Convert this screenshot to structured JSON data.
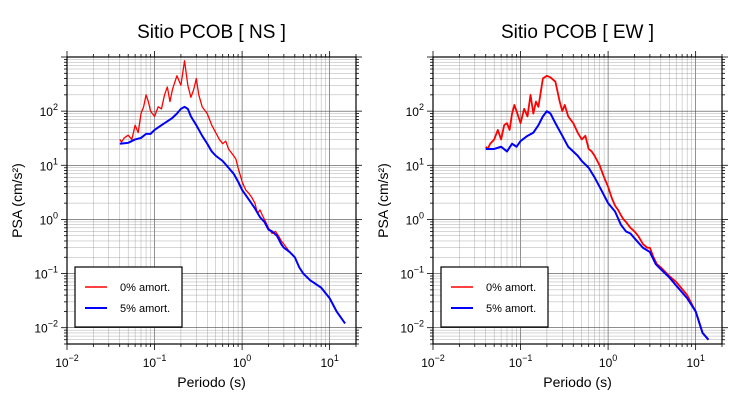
{
  "chart_data": [
    {
      "type": "line",
      "title": "Sitio PCOB [ NS ]",
      "xlabel": "Periodo (s)",
      "ylabel": "PSA (cm/s²)",
      "xscale": "log",
      "yscale": "log",
      "xlim": [
        0.01,
        20
      ],
      "ylim": [
        0.005,
        1000
      ],
      "x_ticks": [
        {
          "base": "10",
          "exp": "−2",
          "value": 0.01
        },
        {
          "base": "10",
          "exp": "−1",
          "value": 0.1
        },
        {
          "base": "10",
          "exp": "0",
          "value": 1
        },
        {
          "base": "10",
          "exp": "1",
          "value": 10
        }
      ],
      "y_ticks": [
        {
          "base": "10",
          "exp": "−2",
          "value": 0.01
        },
        {
          "base": "10",
          "exp": "−1",
          "value": 0.1
        },
        {
          "base": "10",
          "exp": "0",
          "value": 1
        },
        {
          "base": "10",
          "exp": "1",
          "value": 10
        },
        {
          "base": "10",
          "exp": "2",
          "value": 100
        }
      ],
      "grid": true,
      "legend_position": "bottom-left",
      "series": [
        {
          "name": "0% amort.",
          "color": "#ff0000",
          "points": [
            [
              0.04,
              30
            ],
            [
              0.042,
              27
            ],
            [
              0.045,
              32
            ],
            [
              0.05,
              36
            ],
            [
              0.055,
              30
            ],
            [
              0.06,
              55
            ],
            [
              0.065,
              40
            ],
            [
              0.07,
              90
            ],
            [
              0.075,
              120
            ],
            [
              0.08,
              200
            ],
            [
              0.085,
              150
            ],
            [
              0.09,
              100
            ],
            [
              0.1,
              80
            ],
            [
              0.11,
              120
            ],
            [
              0.12,
              110
            ],
            [
              0.13,
              200
            ],
            [
              0.14,
              280
            ],
            [
              0.15,
              150
            ],
            [
              0.16,
              250
            ],
            [
              0.18,
              450
            ],
            [
              0.2,
              300
            ],
            [
              0.22,
              850
            ],
            [
              0.24,
              300
            ],
            [
              0.26,
              180
            ],
            [
              0.28,
              250
            ],
            [
              0.3,
              400
            ],
            [
              0.32,
              200
            ],
            [
              0.35,
              120
            ],
            [
              0.4,
              90
            ],
            [
              0.45,
              55
            ],
            [
              0.5,
              40
            ],
            [
              0.55,
              30
            ],
            [
              0.6,
              25
            ],
            [
              0.65,
              28
            ],
            [
              0.7,
              20
            ],
            [
              0.8,
              15
            ],
            [
              0.85,
              13
            ],
            [
              0.9,
              9
            ],
            [
              1.0,
              5
            ],
            [
              1.1,
              3.5
            ],
            [
              1.2,
              3
            ],
            [
              1.3,
              2.5
            ],
            [
              1.4,
              2
            ],
            [
              1.5,
              1.3
            ],
            [
              1.6,
              1.5
            ],
            [
              1.7,
              1.2
            ],
            [
              1.8,
              1.0
            ],
            [
              2.0,
              0.7
            ],
            [
              2.2,
              0.55
            ],
            [
              2.4,
              0.6
            ],
            [
              2.6,
              0.5
            ],
            [
              2.8,
              0.4
            ],
            [
              3.0,
              0.35
            ],
            [
              3.5,
              0.25
            ],
            [
              4.0,
              0.2
            ],
            [
              4.5,
              0.13
            ],
            [
              5.0,
              0.1
            ],
            [
              6.0,
              0.075
            ],
            [
              8.0,
              0.055
            ],
            [
              10.0,
              0.035
            ],
            [
              12.0,
              0.02
            ],
            [
              15.0,
              0.012
            ]
          ]
        },
        {
          "name": "5% amort.",
          "color": "#0000ff",
          "points": [
            [
              0.04,
              25
            ],
            [
              0.05,
              26
            ],
            [
              0.06,
              30
            ],
            [
              0.07,
              32
            ],
            [
              0.08,
              38
            ],
            [
              0.09,
              38
            ],
            [
              0.1,
              45
            ],
            [
              0.12,
              55
            ],
            [
              0.14,
              65
            ],
            [
              0.16,
              75
            ],
            [
              0.18,
              90
            ],
            [
              0.2,
              110
            ],
            [
              0.22,
              120
            ],
            [
              0.24,
              110
            ],
            [
              0.26,
              80
            ],
            [
              0.3,
              55
            ],
            [
              0.35,
              35
            ],
            [
              0.4,
              25
            ],
            [
              0.45,
              18
            ],
            [
              0.5,
              15
            ],
            [
              0.6,
              12
            ],
            [
              0.7,
              9
            ],
            [
              0.8,
              7
            ],
            [
              0.9,
              5
            ],
            [
              1.0,
              3.5
            ],
            [
              1.2,
              2.3
            ],
            [
              1.4,
              1.6
            ],
            [
              1.6,
              1.1
            ],
            [
              1.8,
              0.9
            ],
            [
              2.0,
              0.65
            ],
            [
              2.2,
              0.6
            ],
            [
              2.5,
              0.5
            ],
            [
              2.8,
              0.35
            ],
            [
              3.0,
              0.3
            ],
            [
              3.5,
              0.25
            ],
            [
              4.0,
              0.2
            ],
            [
              4.5,
              0.13
            ],
            [
              5.0,
              0.1
            ],
            [
              6.0,
              0.075
            ],
            [
              8.0,
              0.055
            ],
            [
              10.0,
              0.035
            ],
            [
              12.0,
              0.02
            ],
            [
              15.0,
              0.012
            ]
          ]
        }
      ]
    },
    {
      "type": "line",
      "title": "Sitio PCOB [ EW ]",
      "xlabel": "Periodo (s)",
      "ylabel": "PSA (cm/s²)",
      "xscale": "log",
      "yscale": "log",
      "xlim": [
        0.01,
        20
      ],
      "ylim": [
        0.005,
        1000
      ],
      "x_ticks": [
        {
          "base": "10",
          "exp": "−2",
          "value": 0.01
        },
        {
          "base": "10",
          "exp": "−1",
          "value": 0.1
        },
        {
          "base": "10",
          "exp": "0",
          "value": 1
        },
        {
          "base": "10",
          "exp": "1",
          "value": 10
        }
      ],
      "y_ticks": [
        {
          "base": "10",
          "exp": "−2",
          "value": 0.01
        },
        {
          "base": "10",
          "exp": "−1",
          "value": 0.1
        },
        {
          "base": "10",
          "exp": "0",
          "value": 1
        },
        {
          "base": "10",
          "exp": "1",
          "value": 10
        },
        {
          "base": "10",
          "exp": "2",
          "value": 100
        }
      ],
      "grid": true,
      "legend_position": "bottom-left",
      "series": [
        {
          "name": "0% amort.",
          "color": "#ff0000",
          "points": [
            [
              0.04,
              22
            ],
            [
              0.042,
              20
            ],
            [
              0.045,
              25
            ],
            [
              0.05,
              30
            ],
            [
              0.055,
              45
            ],
            [
              0.06,
              30
            ],
            [
              0.065,
              55
            ],
            [
              0.07,
              60
            ],
            [
              0.075,
              45
            ],
            [
              0.08,
              90
            ],
            [
              0.085,
              130
            ],
            [
              0.09,
              100
            ],
            [
              0.1,
              60
            ],
            [
              0.11,
              110
            ],
            [
              0.12,
              80
            ],
            [
              0.13,
              200
            ],
            [
              0.14,
              90
            ],
            [
              0.15,
              150
            ],
            [
              0.16,
              120
            ],
            [
              0.18,
              400
            ],
            [
              0.2,
              450
            ],
            [
              0.22,
              420
            ],
            [
              0.25,
              350
            ],
            [
              0.28,
              150
            ],
            [
              0.3,
              100
            ],
            [
              0.32,
              130
            ],
            [
              0.35,
              80
            ],
            [
              0.4,
              60
            ],
            [
              0.45,
              40
            ],
            [
              0.5,
              30
            ],
            [
              0.55,
              35
            ],
            [
              0.6,
              20
            ],
            [
              0.65,
              18
            ],
            [
              0.7,
              15
            ],
            [
              0.8,
              10
            ],
            [
              0.9,
              6
            ],
            [
              1.0,
              4
            ],
            [
              1.1,
              2.5
            ],
            [
              1.2,
              1.8
            ],
            [
              1.3,
              1.5
            ],
            [
              1.4,
              1.2
            ],
            [
              1.5,
              1.0
            ],
            [
              1.6,
              0.9
            ],
            [
              1.8,
              0.7
            ],
            [
              2.0,
              0.6
            ],
            [
              2.2,
              0.5
            ],
            [
              2.5,
              0.35
            ],
            [
              2.8,
              0.3
            ],
            [
              3.0,
              0.3
            ],
            [
              3.3,
              0.2
            ],
            [
              3.6,
              0.15
            ],
            [
              4.0,
              0.13
            ],
            [
              5.0,
              0.09
            ],
            [
              6.0,
              0.07
            ],
            [
              8.0,
              0.04
            ],
            [
              10.0,
              0.02
            ],
            [
              12.0,
              0.008
            ],
            [
              14.0,
              0.006
            ]
          ]
        },
        {
          "name": "5% amort.",
          "color": "#0000ff",
          "points": [
            [
              0.04,
              20
            ],
            [
              0.05,
              20
            ],
            [
              0.06,
              22
            ],
            [
              0.07,
              18
            ],
            [
              0.08,
              25
            ],
            [
              0.09,
              22
            ],
            [
              0.1,
              28
            ],
            [
              0.12,
              35
            ],
            [
              0.14,
              40
            ],
            [
              0.16,
              55
            ],
            [
              0.18,
              80
            ],
            [
              0.2,
              100
            ],
            [
              0.22,
              90
            ],
            [
              0.25,
              60
            ],
            [
              0.3,
              35
            ],
            [
              0.35,
              22
            ],
            [
              0.4,
              18
            ],
            [
              0.45,
              15
            ],
            [
              0.5,
              12
            ],
            [
              0.6,
              9
            ],
            [
              0.7,
              6
            ],
            [
              0.8,
              4
            ],
            [
              1.0,
              2.0
            ],
            [
              1.2,
              1.4
            ],
            [
              1.4,
              0.8
            ],
            [
              1.6,
              0.6
            ],
            [
              1.8,
              0.55
            ],
            [
              2.0,
              0.45
            ],
            [
              2.5,
              0.3
            ],
            [
              3.0,
              0.25
            ],
            [
              3.5,
              0.15
            ],
            [
              4.0,
              0.12
            ],
            [
              5.0,
              0.085
            ],
            [
              6.0,
              0.06
            ],
            [
              8.0,
              0.035
            ],
            [
              10.0,
              0.02
            ],
            [
              12.0,
              0.008
            ],
            [
              14.0,
              0.006
            ]
          ]
        }
      ]
    }
  ]
}
